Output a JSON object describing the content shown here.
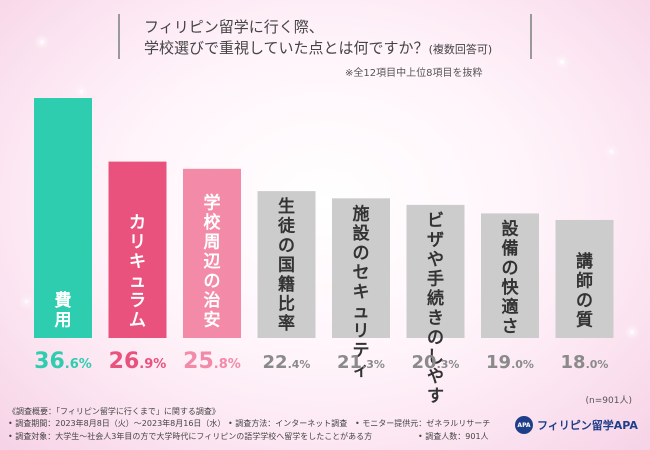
{
  "title": {
    "line1": "フィリピン留学に行く際、",
    "line2_main": "学校選びで重視していた点とは何ですか？",
    "line2_small": "(複数回答可)"
  },
  "note": "※全12項目中上位8項目を抜粋",
  "sample_size": "(n=901人)",
  "chart_data": {
    "type": "bar",
    "title": "フィリピン留学に行く際、学校選びで重視していた点とは何ですか？(複数回答可)",
    "categories": [
      "費用",
      "カリキュラム",
      "学校周辺の治安",
      "生徒の国籍比率",
      "施設のセキュリティ",
      "ビザや手続きのしやすさ",
      "設備の快適さ",
      "講師の質"
    ],
    "values": [
      36.6,
      26.9,
      25.8,
      22.4,
      21.3,
      20.3,
      19.0,
      18.0
    ],
    "value_int": [
      "36",
      "26",
      "25",
      "22",
      "21",
      "20",
      "19",
      "18"
    ],
    "value_dec": [
      ".6%",
      ".9%",
      ".8%",
      ".4%",
      ".3%",
      ".3%",
      ".0%",
      ".0%"
    ],
    "colors": [
      "#2fcdb0",
      "#e8527d",
      "#f28aa8",
      "#cccccc",
      "#cccccc",
      "#cccccc",
      "#cccccc",
      "#cccccc"
    ],
    "value_colors": [
      "#2fcdb0",
      "#e8527d",
      "#f28aa8",
      "#8a8a8a",
      "#8a8a8a",
      "#8a8a8a",
      "#8a8a8a",
      "#8a8a8a"
    ],
    "label_colors": [
      "#ffffff",
      "#ffffff",
      "#ffffff",
      "#333333",
      "#333333",
      "#333333",
      "#333333",
      "#333333"
    ],
    "ylim": [
      0,
      36.6
    ]
  },
  "footer": {
    "line1": "《調査概要：「フィリピン留学に行くまで」に関する調査》",
    "line2a": "• 調査期間：2023年8月8日（火）～2023年8月16日（水）",
    "line2b": "• 調査方法：インターネット調査",
    "line2c": "• モニター提供元：ゼネラルリサーチ",
    "line3a": "• 調査対象：大学生～社会人3年目の方で大学時代にフィリピンの語学学校へ留学をしたことがある方",
    "line3b": "• 調査人数：901人"
  },
  "brand": {
    "logo": "APA",
    "name": "フィリピン留学APA"
  }
}
